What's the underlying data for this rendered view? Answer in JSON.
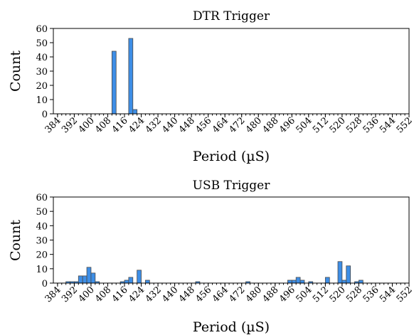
{
  "chart_data": [
    {
      "type": "bar",
      "title": "DTR Trigger",
      "xlabel": "Period (µS)",
      "ylabel": "Count",
      "xlim": [
        382,
        552
      ],
      "ylim": [
        0,
        60
      ],
      "bin_width": 2,
      "xticks": [
        "384",
        "392",
        "400",
        "408",
        "416",
        "424",
        "432",
        "440",
        "448",
        "456",
        "464",
        "472",
        "480",
        "488",
        "496",
        "504",
        "512",
        "520",
        "528",
        "536",
        "544",
        "552"
      ],
      "yticks": [
        "0",
        "10",
        "20",
        "30",
        "40",
        "50",
        "60"
      ],
      "bars": [
        {
          "x": 410,
          "value": 44
        },
        {
          "x": 418,
          "value": 53
        },
        {
          "x": 420,
          "value": 3
        }
      ],
      "grid": false
    },
    {
      "type": "bar",
      "title": "USB Trigger",
      "xlabel": "Period (µS)",
      "ylabel": "Count",
      "xlim": [
        382,
        552
      ],
      "ylim": [
        0,
        60
      ],
      "bin_width": 2,
      "xticks": [
        "384",
        "392",
        "400",
        "408",
        "416",
        "424",
        "432",
        "440",
        "448",
        "456",
        "464",
        "472",
        "480",
        "488",
        "496",
        "504",
        "512",
        "520",
        "528",
        "536",
        "544",
        "552"
      ],
      "yticks": [
        "0",
        "10",
        "20",
        "30",
        "40",
        "50",
        "60"
      ],
      "bars": [
        {
          "x": 388,
          "value": 1
        },
        {
          "x": 390,
          "value": 1
        },
        {
          "x": 392,
          "value": 1
        },
        {
          "x": 394,
          "value": 5
        },
        {
          "x": 396,
          "value": 5
        },
        {
          "x": 398,
          "value": 11
        },
        {
          "x": 400,
          "value": 7
        },
        {
          "x": 402,
          "value": 1
        },
        {
          "x": 414,
          "value": 1
        },
        {
          "x": 416,
          "value": 2
        },
        {
          "x": 418,
          "value": 4
        },
        {
          "x": 422,
          "value": 9
        },
        {
          "x": 426,
          "value": 2
        },
        {
          "x": 450,
          "value": 1
        },
        {
          "x": 474,
          "value": 1
        },
        {
          "x": 494,
          "value": 2
        },
        {
          "x": 496,
          "value": 2
        },
        {
          "x": 498,
          "value": 4
        },
        {
          "x": 500,
          "value": 2
        },
        {
          "x": 504,
          "value": 1
        },
        {
          "x": 512,
          "value": 4
        },
        {
          "x": 518,
          "value": 15
        },
        {
          "x": 520,
          "value": 2
        },
        {
          "x": 522,
          "value": 12
        },
        {
          "x": 526,
          "value": 1
        },
        {
          "x": 528,
          "value": 2
        }
      ],
      "grid": false
    }
  ]
}
